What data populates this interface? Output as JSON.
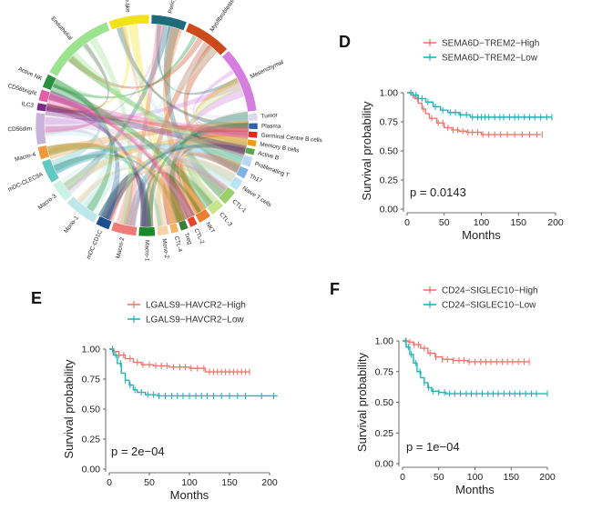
{
  "figure": {
    "panels": [
      {
        "id": "C",
        "type": "chord",
        "sectors": [
          {
            "name": "SCP-like",
            "color": "#f2e21c"
          },
          {
            "name": "Pericytes",
            "color": "#1e6b7a"
          },
          {
            "name": "Myofibroblasts",
            "color": "#cc4a1a"
          },
          {
            "name": "Mesenchymal",
            "color": "#d57ee0"
          },
          {
            "name": "Tumor",
            "color": "#d9d9ea"
          },
          {
            "name": "Plasma",
            "color": "#2f63a8"
          },
          {
            "name": "Germinal Centre B cells",
            "color": "#e2271b"
          },
          {
            "name": "Memory B cells",
            "color": "#f29b0f"
          },
          {
            "name": "Active B",
            "color": "#5aa84a"
          },
          {
            "name": "Proliferating T",
            "color": "#bcd7ef"
          },
          {
            "name": "Th17",
            "color": "#7fb2df"
          },
          {
            "name": "Naive T cells",
            "color": "#b8e3f2"
          },
          {
            "name": "CTL-1",
            "color": "#9ad06a"
          },
          {
            "name": "CTL-3",
            "color": "#c9e38a"
          },
          {
            "name": "NKT",
            "color": "#ee7d33"
          },
          {
            "name": "CTL-2",
            "color": "#e0462a"
          },
          {
            "name": "Treg",
            "color": "#3b7f3a"
          },
          {
            "name": "CTL-4",
            "color": "#f5b463"
          },
          {
            "name": "Mono-2",
            "color": "#f6d2a8"
          },
          {
            "name": "Macro-1",
            "color": "#1a8a2a"
          },
          {
            "name": "Macro-2",
            "color": "#ee7b78"
          },
          {
            "name": "mDC-CD1C",
            "color": "#1f4f8f"
          },
          {
            "name": "Mono-1",
            "color": "#bde7e8"
          },
          {
            "name": "Macro-3",
            "color": "#c7f2e4"
          },
          {
            "name": "mDC-CLEC9A",
            "color": "#62c8c3"
          },
          {
            "name": "Macro-4",
            "color": "#f09a3c"
          },
          {
            "name": "CD56dim",
            "color": "#c9b2d9"
          },
          {
            "name": "ILC3",
            "color": "#7b2a86"
          },
          {
            "name": "CD56bright",
            "color": "#e75ca6"
          },
          {
            "name": "Active NK",
            "color": "#27913f"
          },
          {
            "name": "Endothelial",
            "color": "#9be38e"
          }
        ]
      },
      {
        "id": "D",
        "type": "km",
        "letter": "D",
        "pvalue": "p = 0.0143",
        "xlabel": "Months",
        "ylabel": "Survival probability",
        "xticks": [
          0,
          50,
          100,
          150,
          200
        ],
        "yticks": [
          "0.00",
          "0.25",
          "0.50",
          "0.75",
          "1.00"
        ],
        "xlim": [
          0,
          200
        ],
        "ylim": [
          0,
          1
        ],
        "series": [
          {
            "name": "SEMA6D−TREM2−High",
            "color": "#f0766c",
            "steps": [
              [
                0,
                1.0
              ],
              [
                5,
                0.98
              ],
              [
                10,
                0.95
              ],
              [
                15,
                0.91
              ],
              [
                20,
                0.86
              ],
              [
                25,
                0.82
              ],
              [
                30,
                0.78
              ],
              [
                40,
                0.74
              ],
              [
                50,
                0.7
              ],
              [
                60,
                0.68
              ],
              [
                70,
                0.67
              ],
              [
                80,
                0.66
              ],
              [
                100,
                0.64
              ],
              [
                180,
                0.64
              ]
            ],
            "censors": [
              8,
              14,
              22,
              33,
              42,
              48,
              55,
              62,
              68,
              75,
              82,
              88,
              95,
              102,
              110,
              118,
              126,
              135,
              145,
              155,
              165,
              175,
              182
            ]
          },
          {
            "name": "SEMA6D−TREM2−Low",
            "color": "#22b5b7",
            "steps": [
              [
                0,
                1.0
              ],
              [
                8,
                0.98
              ],
              [
                15,
                0.95
              ],
              [
                25,
                0.92
              ],
              [
                35,
                0.88
              ],
              [
                45,
                0.85
              ],
              [
                55,
                0.83
              ],
              [
                70,
                0.81
              ],
              [
                85,
                0.79
              ],
              [
                195,
                0.79
              ]
            ],
            "censors": [
              5,
              12,
              20,
              28,
              38,
              48,
              58,
              65,
              72,
              80,
              88,
              95,
              100,
              105,
              110,
              118,
              125,
              130,
              138,
              145,
              150,
              158,
              165,
              172,
              180,
              188,
              195
            ]
          }
        ]
      },
      {
        "id": "E",
        "type": "km",
        "letter": "E",
        "pvalue": "p = 2e−04",
        "xlabel": "Months",
        "ylabel": "Survival probability",
        "xticks": [
          0,
          50,
          100,
          150,
          200
        ],
        "yticks": [
          "0.00",
          "0.25",
          "0.50",
          "0.75",
          "1.00"
        ],
        "xlim": [
          0,
          200
        ],
        "ylim": [
          0,
          1
        ],
        "series": [
          {
            "name": "LGALS9−HAVCR2−High",
            "color": "#f0766c",
            "steps": [
              [
                0,
                1.0
              ],
              [
                5,
                0.98
              ],
              [
                12,
                0.95
              ],
              [
                20,
                0.92
              ],
              [
                30,
                0.89
              ],
              [
                40,
                0.87
              ],
              [
                55,
                0.86
              ],
              [
                75,
                0.85
              ],
              [
                100,
                0.84
              ],
              [
                120,
                0.81
              ],
              [
                175,
                0.81
              ]
            ],
            "censors": [
              6,
              12,
              18,
              26,
              35,
              42,
              50,
              58,
              65,
              72,
              80,
              88,
              95,
              102,
              110,
              118,
              125,
              130,
              135,
              140,
              145,
              150,
              155,
              160,
              165,
              170,
              175
            ]
          },
          {
            "name": "LGALS9−HAVCR2−Low",
            "color": "#22b5b7",
            "steps": [
              [
                0,
                1.0
              ],
              [
                5,
                0.95
              ],
              [
                10,
                0.88
              ],
              [
                15,
                0.8
              ],
              [
                20,
                0.74
              ],
              [
                25,
                0.7
              ],
              [
                30,
                0.66
              ],
              [
                35,
                0.64
              ],
              [
                45,
                0.62
              ],
              [
                60,
                0.61
              ],
              [
                210,
                0.61
              ]
            ],
            "censors": [
              4,
              8,
              14,
              20,
              26,
              32,
              40,
              48,
              55,
              62,
              70,
              78,
              85,
              92,
              100,
              108,
              115,
              122,
              130,
              140,
              150,
              160,
              170,
              190,
              205
            ]
          }
        ]
      },
      {
        "id": "F",
        "type": "km",
        "letter": "F",
        "pvalue": "p = 1e−04",
        "xlabel": "Months",
        "ylabel": "Survival probability",
        "xticks": [
          0,
          50,
          100,
          150,
          200
        ],
        "yticks": [
          "0.00",
          "0.25",
          "0.50",
          "0.75",
          "1.00"
        ],
        "xlim": [
          0,
          200
        ],
        "ylim": [
          0,
          1
        ],
        "series": [
          {
            "name": "CD24−SIGLEC10−High",
            "color": "#f0766c",
            "steps": [
              [
                0,
                1.0
              ],
              [
                8,
                0.99
              ],
              [
                15,
                0.97
              ],
              [
                25,
                0.94
              ],
              [
                35,
                0.9
              ],
              [
                45,
                0.87
              ],
              [
                55,
                0.85
              ],
              [
                70,
                0.84
              ],
              [
                90,
                0.83
              ],
              [
                175,
                0.83
              ]
            ],
            "censors": [
              5,
              10,
              16,
              22,
              30,
              38,
              46,
              55,
              62,
              70,
              78,
              85,
              92,
              100,
              108,
              115,
              122,
              130,
              138,
              145,
              152,
              160,
              168,
              175
            ]
          },
          {
            "name": "CD24−SIGLEC10−Low",
            "color": "#22b5b7",
            "steps": [
              [
                0,
                1.0
              ],
              [
                5,
                0.95
              ],
              [
                10,
                0.89
              ],
              [
                15,
                0.82
              ],
              [
                20,
                0.75
              ],
              [
                25,
                0.7
              ],
              [
                30,
                0.66
              ],
              [
                35,
                0.62
              ],
              [
                40,
                0.59
              ],
              [
                50,
                0.58
              ],
              [
                60,
                0.57
              ],
              [
                200,
                0.57
              ]
            ],
            "censors": [
              4,
              8,
              12,
              18,
              24,
              30,
              36,
              42,
              50,
              58,
              65,
              72,
              80,
              88,
              95,
              102,
              110,
              118,
              125,
              132,
              140,
              148,
              155,
              162,
              170,
              178,
              185,
              200
            ]
          }
        ]
      }
    ]
  }
}
